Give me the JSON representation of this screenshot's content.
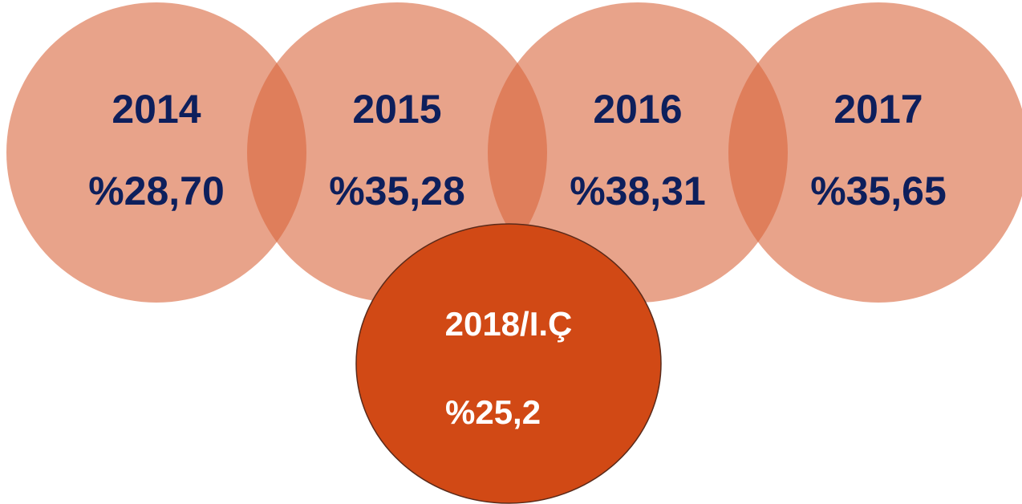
{
  "circles": [
    {
      "year": "2014",
      "value": "%28,70"
    },
    {
      "year": "2015",
      "value": "%35,28"
    },
    {
      "year": "2016",
      "value": "%38,31"
    },
    {
      "year": "2017",
      "value": "%35,65"
    }
  ],
  "highlight": {
    "year": "2018/I.Ç",
    "value": "%25,2"
  }
}
